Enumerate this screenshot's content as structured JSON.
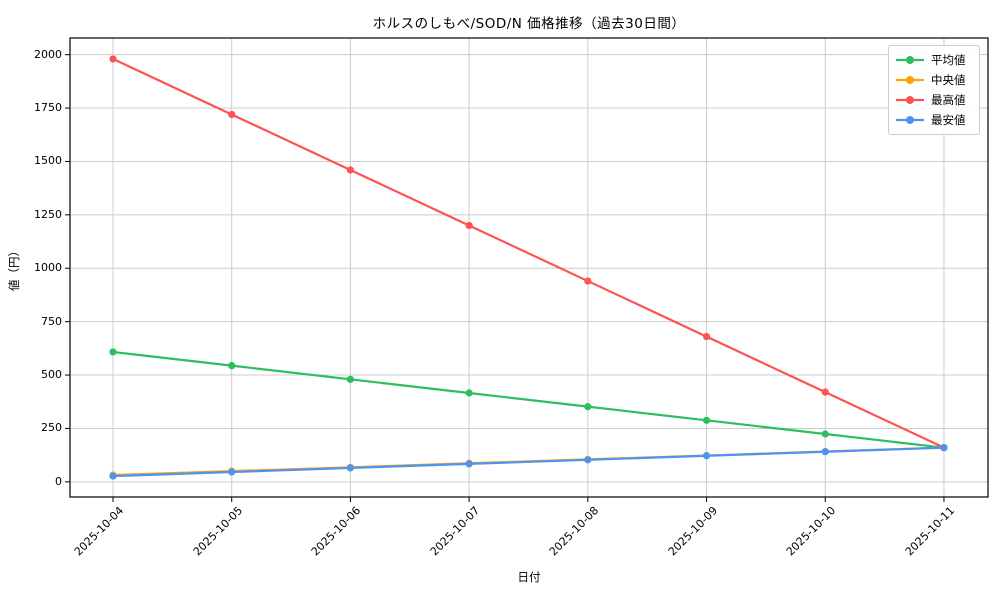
{
  "chart_data": {
    "type": "line",
    "title": "ホルスのしもべ/SOD/N 価格推移（過去30日間）",
    "xlabel": "日付",
    "ylabel": "値（円）",
    "categories": [
      "2025-10-04",
      "2025-10-05",
      "2025-10-06",
      "2025-10-07",
      "2025-10-08",
      "2025-10-09",
      "2025-10-10",
      "2025-10-11"
    ],
    "series": [
      {
        "key": "mean",
        "name": "平均値",
        "color": "#2DBE60",
        "values": [
          608,
          544,
          480,
          416,
          352,
          288,
          224,
          160
        ]
      },
      {
        "key": "median",
        "name": "中央値",
        "color": "#FFA500",
        "values": [
          32,
          50,
          68,
          87,
          105,
          123,
          142,
          160
        ]
      },
      {
        "key": "max",
        "name": "最高値",
        "color": "#FF5252",
        "values": [
          1980,
          1720,
          1460,
          1200,
          940,
          680,
          420,
          160
        ]
      },
      {
        "key": "min",
        "name": "最安値",
        "color": "#4D94F2",
        "values": [
          27,
          46,
          65,
          84,
          103,
          122,
          141,
          160
        ]
      }
    ],
    "yticks": [
      0,
      250,
      500,
      750,
      1000,
      1250,
      1500,
      1750,
      2000
    ],
    "ylim": [
      -71,
      2078
    ],
    "grid": true,
    "legend_position": "upper right"
  },
  "colors": {
    "grid": "#cccccc",
    "spine": "#000000",
    "tick_text": "#000000",
    "legend_border": "#cccccc",
    "background": "#ffffff"
  }
}
